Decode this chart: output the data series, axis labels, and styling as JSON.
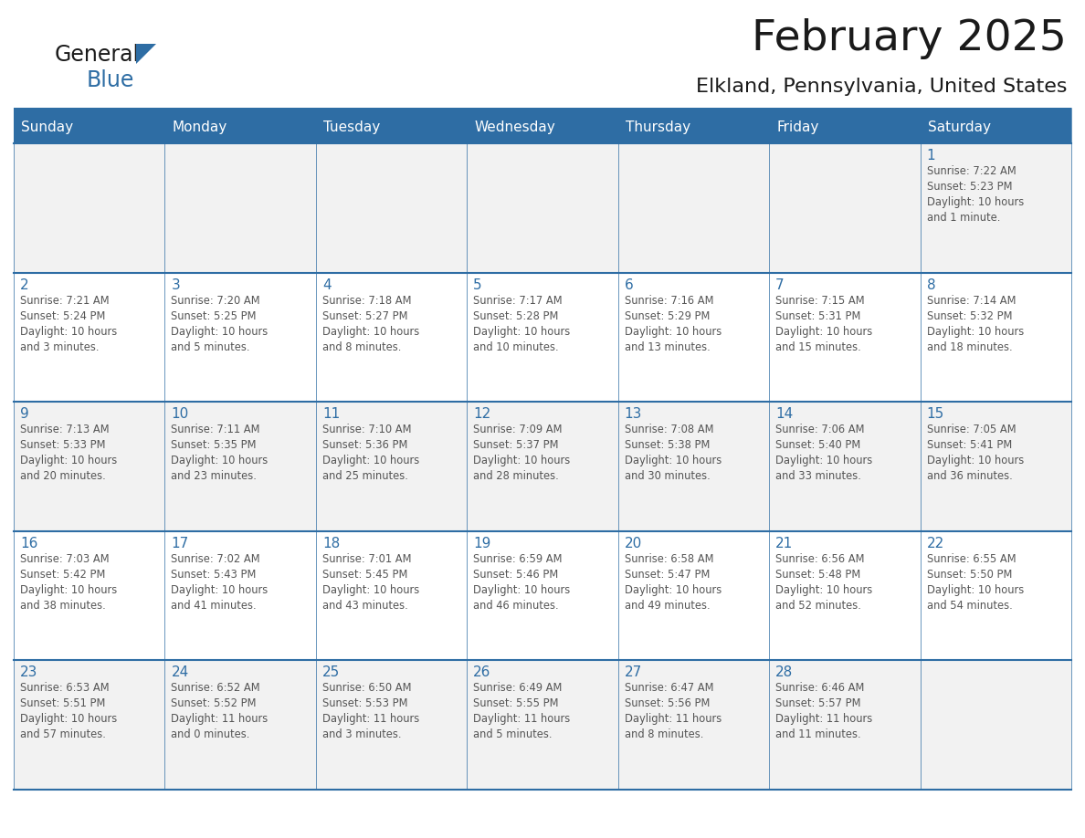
{
  "title": "February 2025",
  "subtitle": "Elkland, Pennsylvania, United States",
  "days_of_week": [
    "Sunday",
    "Monday",
    "Tuesday",
    "Wednesday",
    "Thursday",
    "Friday",
    "Saturday"
  ],
  "header_bg": "#2E6DA4",
  "header_text": "#FFFFFF",
  "cell_bg_odd": "#F2F2F2",
  "cell_bg_even": "#FFFFFF",
  "day_number_color": "#2E6DA4",
  "info_text_color": "#555555",
  "border_color": "#2E6DA4",
  "title_color": "#1a1a1a",
  "subtitle_color": "#1a1a1a",
  "logo_general_color": "#1a1a1a",
  "logo_blue_color": "#2E6DA4",
  "weeks": [
    [
      {
        "day": null,
        "info": ""
      },
      {
        "day": null,
        "info": ""
      },
      {
        "day": null,
        "info": ""
      },
      {
        "day": null,
        "info": ""
      },
      {
        "day": null,
        "info": ""
      },
      {
        "day": null,
        "info": ""
      },
      {
        "day": 1,
        "info": "Sunrise: 7:22 AM\nSunset: 5:23 PM\nDaylight: 10 hours\nand 1 minute."
      }
    ],
    [
      {
        "day": 2,
        "info": "Sunrise: 7:21 AM\nSunset: 5:24 PM\nDaylight: 10 hours\nand 3 minutes."
      },
      {
        "day": 3,
        "info": "Sunrise: 7:20 AM\nSunset: 5:25 PM\nDaylight: 10 hours\nand 5 minutes."
      },
      {
        "day": 4,
        "info": "Sunrise: 7:18 AM\nSunset: 5:27 PM\nDaylight: 10 hours\nand 8 minutes."
      },
      {
        "day": 5,
        "info": "Sunrise: 7:17 AM\nSunset: 5:28 PM\nDaylight: 10 hours\nand 10 minutes."
      },
      {
        "day": 6,
        "info": "Sunrise: 7:16 AM\nSunset: 5:29 PM\nDaylight: 10 hours\nand 13 minutes."
      },
      {
        "day": 7,
        "info": "Sunrise: 7:15 AM\nSunset: 5:31 PM\nDaylight: 10 hours\nand 15 minutes."
      },
      {
        "day": 8,
        "info": "Sunrise: 7:14 AM\nSunset: 5:32 PM\nDaylight: 10 hours\nand 18 minutes."
      }
    ],
    [
      {
        "day": 9,
        "info": "Sunrise: 7:13 AM\nSunset: 5:33 PM\nDaylight: 10 hours\nand 20 minutes."
      },
      {
        "day": 10,
        "info": "Sunrise: 7:11 AM\nSunset: 5:35 PM\nDaylight: 10 hours\nand 23 minutes."
      },
      {
        "day": 11,
        "info": "Sunrise: 7:10 AM\nSunset: 5:36 PM\nDaylight: 10 hours\nand 25 minutes."
      },
      {
        "day": 12,
        "info": "Sunrise: 7:09 AM\nSunset: 5:37 PM\nDaylight: 10 hours\nand 28 minutes."
      },
      {
        "day": 13,
        "info": "Sunrise: 7:08 AM\nSunset: 5:38 PM\nDaylight: 10 hours\nand 30 minutes."
      },
      {
        "day": 14,
        "info": "Sunrise: 7:06 AM\nSunset: 5:40 PM\nDaylight: 10 hours\nand 33 minutes."
      },
      {
        "day": 15,
        "info": "Sunrise: 7:05 AM\nSunset: 5:41 PM\nDaylight: 10 hours\nand 36 minutes."
      }
    ],
    [
      {
        "day": 16,
        "info": "Sunrise: 7:03 AM\nSunset: 5:42 PM\nDaylight: 10 hours\nand 38 minutes."
      },
      {
        "day": 17,
        "info": "Sunrise: 7:02 AM\nSunset: 5:43 PM\nDaylight: 10 hours\nand 41 minutes."
      },
      {
        "day": 18,
        "info": "Sunrise: 7:01 AM\nSunset: 5:45 PM\nDaylight: 10 hours\nand 43 minutes."
      },
      {
        "day": 19,
        "info": "Sunrise: 6:59 AM\nSunset: 5:46 PM\nDaylight: 10 hours\nand 46 minutes."
      },
      {
        "day": 20,
        "info": "Sunrise: 6:58 AM\nSunset: 5:47 PM\nDaylight: 10 hours\nand 49 minutes."
      },
      {
        "day": 21,
        "info": "Sunrise: 6:56 AM\nSunset: 5:48 PM\nDaylight: 10 hours\nand 52 minutes."
      },
      {
        "day": 22,
        "info": "Sunrise: 6:55 AM\nSunset: 5:50 PM\nDaylight: 10 hours\nand 54 minutes."
      }
    ],
    [
      {
        "day": 23,
        "info": "Sunrise: 6:53 AM\nSunset: 5:51 PM\nDaylight: 10 hours\nand 57 minutes."
      },
      {
        "day": 24,
        "info": "Sunrise: 6:52 AM\nSunset: 5:52 PM\nDaylight: 11 hours\nand 0 minutes."
      },
      {
        "day": 25,
        "info": "Sunrise: 6:50 AM\nSunset: 5:53 PM\nDaylight: 11 hours\nand 3 minutes."
      },
      {
        "day": 26,
        "info": "Sunrise: 6:49 AM\nSunset: 5:55 PM\nDaylight: 11 hours\nand 5 minutes."
      },
      {
        "day": 27,
        "info": "Sunrise: 6:47 AM\nSunset: 5:56 PM\nDaylight: 11 hours\nand 8 minutes."
      },
      {
        "day": 28,
        "info": "Sunrise: 6:46 AM\nSunset: 5:57 PM\nDaylight: 11 hours\nand 11 minutes."
      },
      {
        "day": null,
        "info": ""
      }
    ]
  ]
}
